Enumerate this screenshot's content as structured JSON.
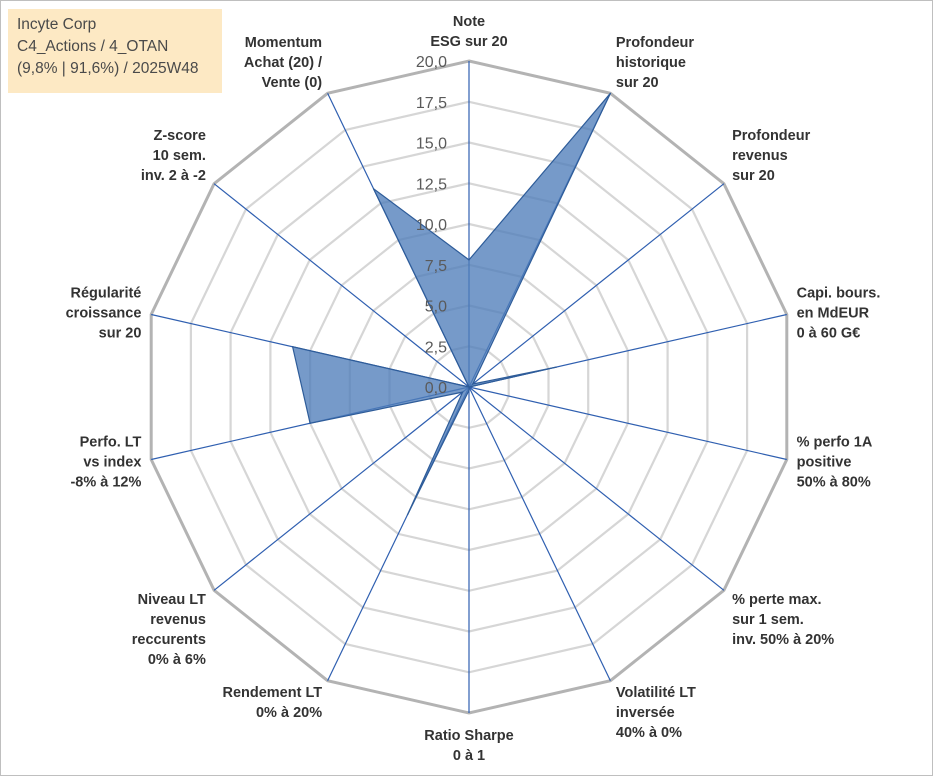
{
  "info": {
    "company": "Incyte Corp",
    "category": "C4_Actions / 4_OTAN",
    "stats": "(9,8% | 91,6%) / 2025W48"
  },
  "chart_data": {
    "type": "radar",
    "title": "",
    "scale": {
      "min": 0,
      "max": 20,
      "step": 2.5
    },
    "tick_labels": [
      "0,0",
      "2,5",
      "5,0",
      "7,5",
      "10,0",
      "12,5",
      "15,0",
      "17,5",
      "20,0"
    ],
    "axes": [
      {
        "lines": [
          "Note",
          "ESG sur 20"
        ],
        "value": 7.8
      },
      {
        "lines": [
          "Profondeur",
          "historique",
          "sur 20"
        ],
        "value": 20.0
      },
      {
        "lines": [
          "Profondeur",
          "revenus",
          "sur 20"
        ],
        "value": 0.3
      },
      {
        "lines": [
          "Capi. bours.",
          "en MdEUR",
          "0 à 60 G€"
        ],
        "value": 5.5
      },
      {
        "lines": [
          "% perfo 1A",
          "positive",
          "50% à 80%"
        ],
        "value": 0.0
      },
      {
        "lines": [
          "% perte max.",
          "sur 1 sem.",
          "inv. 50% à 20%"
        ],
        "value": 0.0
      },
      {
        "lines": [
          "Volatilité LT",
          "inversée",
          "40% à 0%"
        ],
        "value": 0.0
      },
      {
        "lines": [
          "Ratio Sharpe",
          "0 à 1"
        ],
        "value": 0.2
      },
      {
        "lines": [
          "Rendement LT",
          "0% à 20%"
        ],
        "value": 8.7
      },
      {
        "lines": [
          "Niveau LT",
          "revenus",
          "reccurents",
          "0% à 6%"
        ],
        "value": 0.5
      },
      {
        "lines": [
          "Perfo. LT",
          "vs index",
          "-8% à 12%"
        ],
        "value": 10.0
      },
      {
        "lines": [
          "Régularité",
          "croissance",
          "sur 20"
        ],
        "value": 11.1
      },
      {
        "lines": [
          "Z-score",
          "10 sem.",
          "inv. 2 à -2"
        ],
        "value": 0.0
      },
      {
        "lines": [
          "Momentum",
          "Achat (20) /",
          "Vente (0)"
        ],
        "value": 13.5
      }
    ],
    "colors": {
      "fill": "#4f7dba",
      "fill_opacity": "0.78",
      "outline": "#2e5c99",
      "spokes": "#2f5fb0",
      "outer_grid": "#b3b3b3",
      "inner_grid": "#d6d6d6"
    }
  }
}
